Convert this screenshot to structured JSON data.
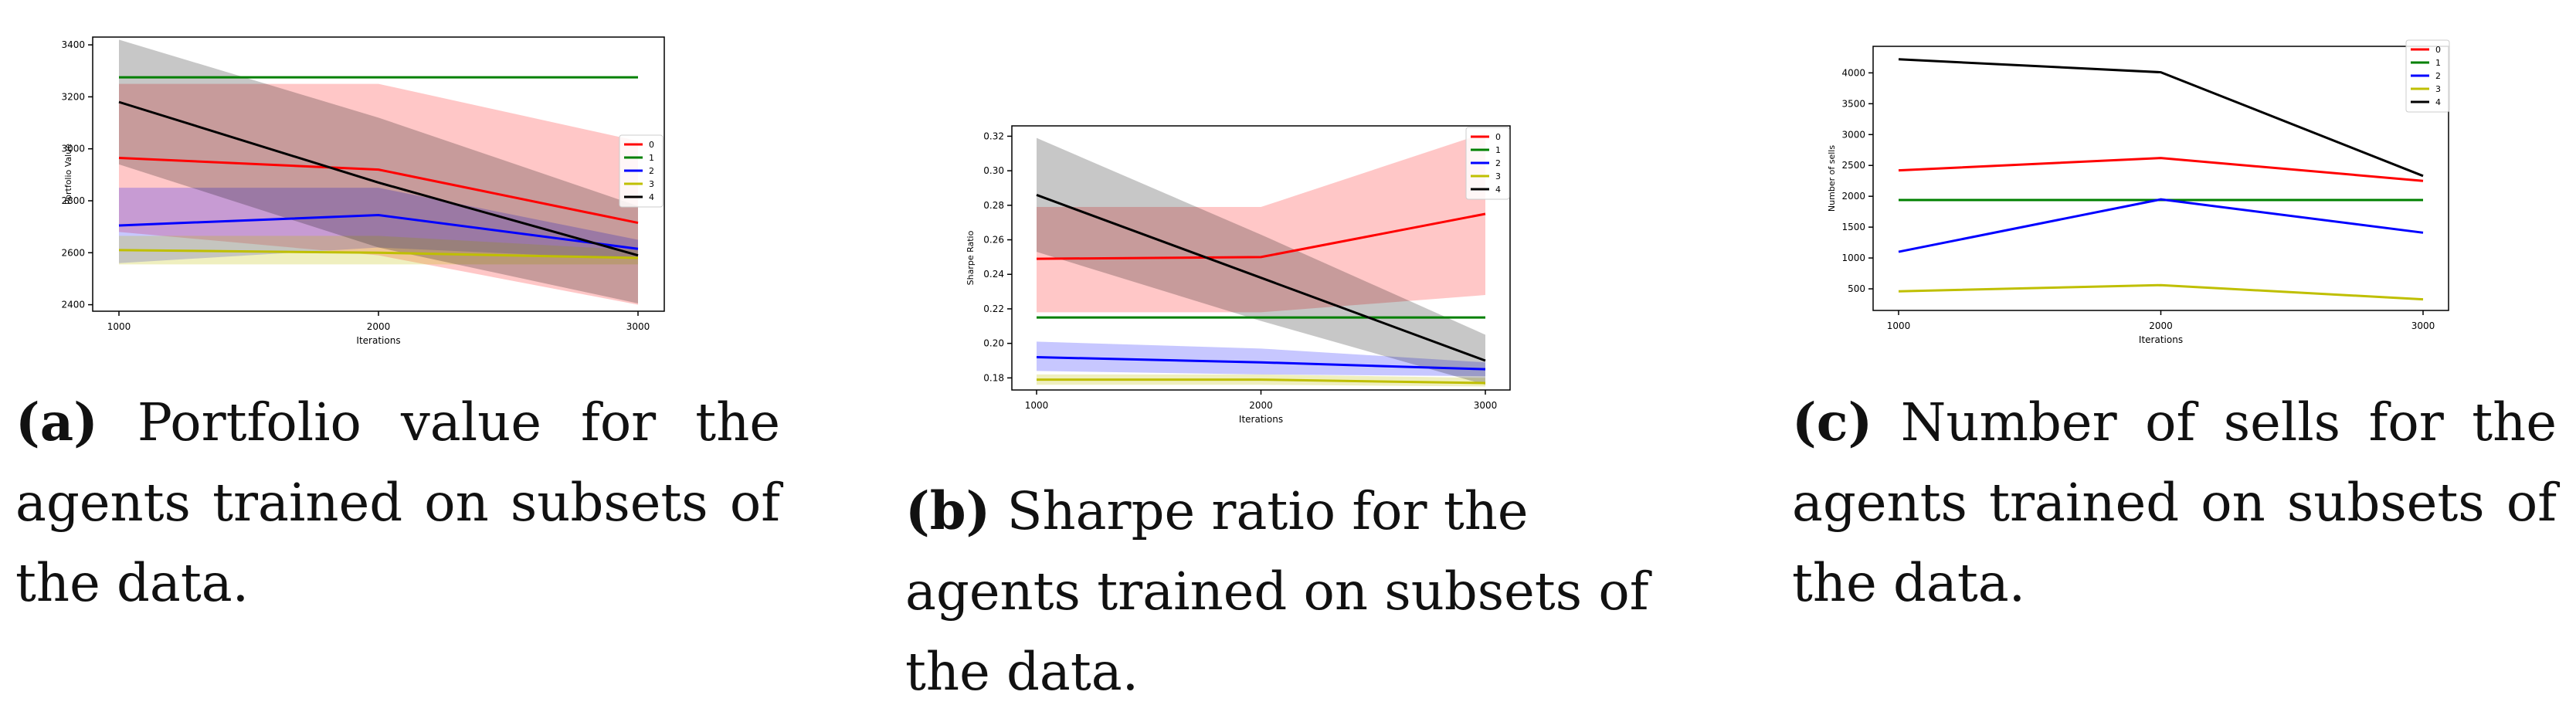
{
  "colors": {
    "0": "#ff0000",
    "1": "#008000",
    "2": "#0000ff",
    "3": "#bfbf00",
    "4": "#000000"
  },
  "captions": [
    {
      "tag": "(a)",
      "text": "Portfolio value for the agents trained on subsets of the data."
    },
    {
      "tag": "(b)",
      "text": "Sharpe ratio for the agents trained on subsets of the data."
    },
    {
      "tag": "(c)",
      "text": "Number of sells for the agents trained on subsets of the data."
    }
  ],
  "chart_data": [
    {
      "type": "line",
      "xlabel": "Iterations",
      "ylabel": "Portfolio Value",
      "x": [
        1000,
        2000,
        3000
      ],
      "xticks": [
        "1000",
        "2000",
        "3000"
      ],
      "yticks": [
        "2400",
        "2600",
        "2800",
        "3000",
        "3200",
        "3400"
      ],
      "ytick_values": [
        2400,
        2600,
        2800,
        3000,
        3200,
        3400
      ],
      "ylim": [
        2375,
        3430
      ],
      "legend_position": "right",
      "series": [
        {
          "name": "0",
          "values": [
            2965,
            2920,
            2715
          ],
          "band_low": [
            2680,
            2590,
            2400
          ],
          "band_high": [
            3250,
            3250,
            3030
          ]
        },
        {
          "name": "1",
          "values": [
            3275,
            3275,
            3275
          ]
        },
        {
          "name": "2",
          "values": [
            2705,
            2745,
            2615
          ],
          "band_low": [
            2560,
            2620,
            2575
          ],
          "band_high": [
            2850,
            2850,
            2650
          ]
        },
        {
          "name": "3",
          "values": [
            2610,
            2600,
            2580
          ],
          "band_low": [
            2555,
            2555,
            2555
          ],
          "band_high": [
            2665,
            2665,
            2610
          ]
        },
        {
          "name": "4",
          "values": [
            3180,
            2870,
            2590
          ],
          "band_low": [
            2940,
            2620,
            2405
          ],
          "band_high": [
            3420,
            3120,
            2780
          ]
        }
      ]
    },
    {
      "type": "line",
      "xlabel": "Iterations",
      "ylabel": "Sharpe Ratio",
      "x": [
        1000,
        2000,
        3000
      ],
      "xticks": [
        "1000",
        "2000",
        "3000"
      ],
      "yticks": [
        "0.18",
        "0.20",
        "0.22",
        "0.24",
        "0.26",
        "0.28",
        "0.30",
        "0.32"
      ],
      "ytick_values": [
        0.18,
        0.2,
        0.22,
        0.24,
        0.26,
        0.28,
        0.3,
        0.32
      ],
      "ylim": [
        0.173,
        0.326
      ],
      "legend_position": "top-right",
      "series": [
        {
          "name": "0",
          "values": [
            0.249,
            0.25,
            0.275
          ],
          "band_low": [
            0.218,
            0.218,
            0.228
          ],
          "band_high": [
            0.279,
            0.279,
            0.322
          ]
        },
        {
          "name": "1",
          "values": [
            0.215,
            0.215,
            0.215
          ]
        },
        {
          "name": "2",
          "values": [
            0.192,
            0.189,
            0.185
          ],
          "band_low": [
            0.184,
            0.182,
            0.181
          ],
          "band_high": [
            0.201,
            0.197,
            0.189
          ]
        },
        {
          "name": "3",
          "values": [
            0.179,
            0.179,
            0.177
          ],
          "band_low": [
            0.176,
            0.176,
            0.175
          ],
          "band_high": [
            0.182,
            0.182,
            0.18
          ]
        },
        {
          "name": "4",
          "values": [
            0.286,
            0.238,
            0.19
          ],
          "band_low": [
            0.253,
            0.213,
            0.176
          ],
          "band_high": [
            0.319,
            0.263,
            0.205
          ]
        }
      ]
    },
    {
      "type": "line",
      "xlabel": "Iterations",
      "ylabel": "Number of sells",
      "x": [
        1000,
        2000,
        3000
      ],
      "xticks": [
        "1000",
        "2000",
        "3000"
      ],
      "yticks": [
        "500",
        "1000",
        "1500",
        "2000",
        "2500",
        "3000",
        "3500",
        "4000"
      ],
      "ytick_values": [
        500,
        1000,
        1500,
        2000,
        2500,
        3000,
        3500,
        4000
      ],
      "ylim": [
        150,
        4430
      ],
      "legend_position": "top-right",
      "series": [
        {
          "name": "0",
          "values": [
            2420,
            2620,
            2250
          ]
        },
        {
          "name": "1",
          "values": [
            1940,
            1940,
            1940
          ]
        },
        {
          "name": "2",
          "values": [
            1100,
            1950,
            1410
          ]
        },
        {
          "name": "3",
          "values": [
            460,
            560,
            330
          ]
        },
        {
          "name": "4",
          "values": [
            4220,
            4010,
            2330
          ]
        }
      ]
    }
  ]
}
